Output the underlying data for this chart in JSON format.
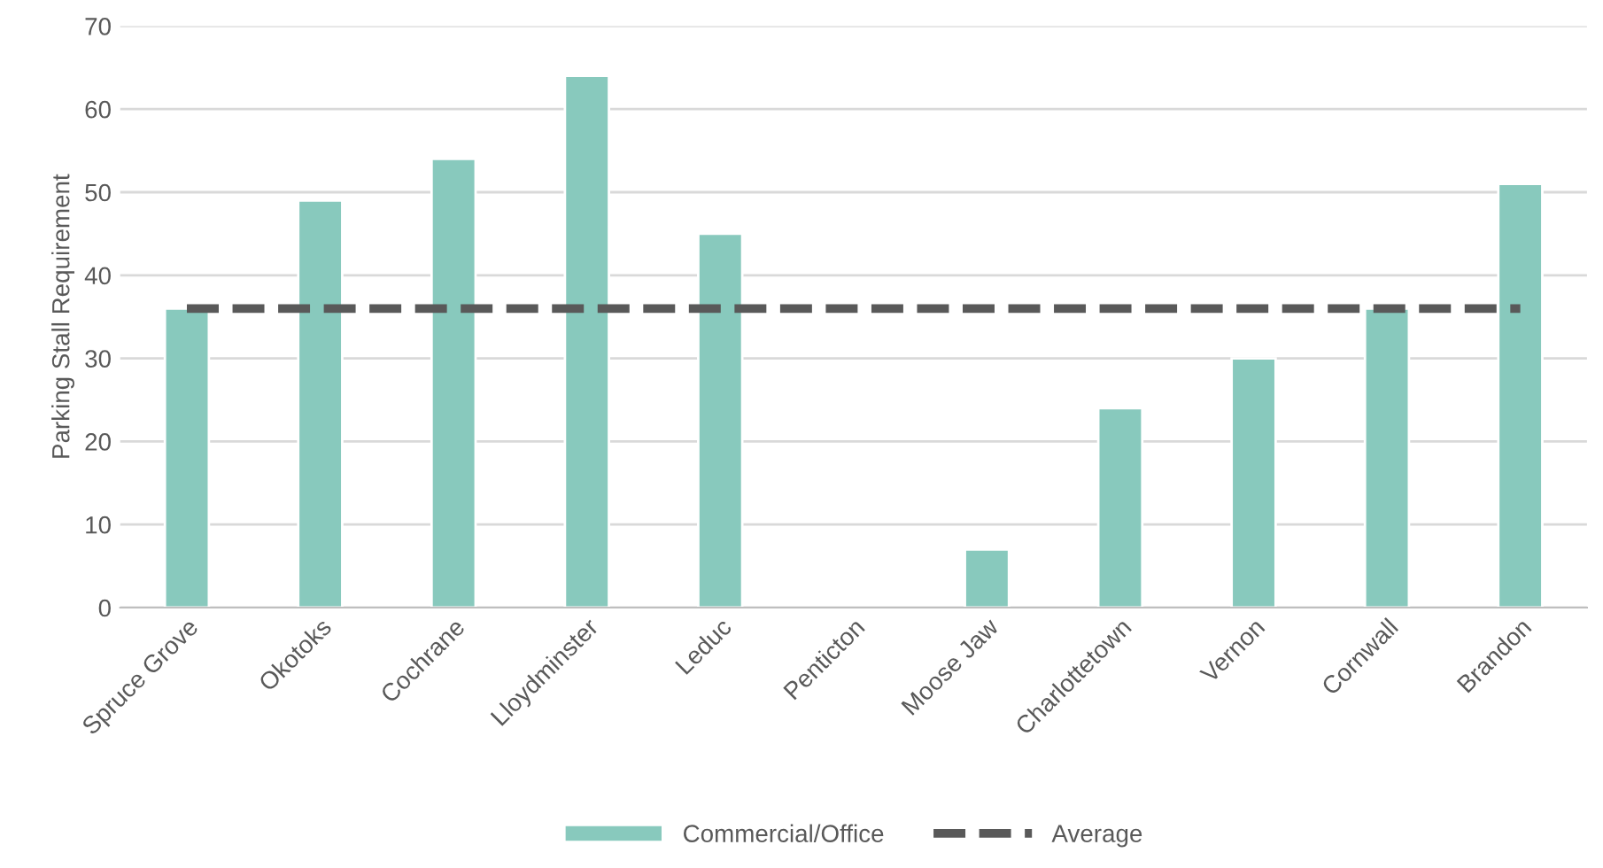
{
  "chart_data": {
    "type": "bar",
    "ylabel": "Parking Stall Requirement",
    "categories": [
      "Spruce Grove",
      "Okotoks",
      "Cochrane",
      "Lloydminster",
      "Leduc",
      "Penticton",
      "Moose Jaw",
      "Charlottetown",
      "Vernon",
      "Cornwall",
      "Brandon"
    ],
    "series": [
      {
        "name": "Commercial/Office",
        "color": "#88c9bd",
        "values": [
          36,
          49,
          54,
          64,
          45,
          null,
          7,
          24,
          30,
          36,
          51
        ]
      },
      {
        "name": "Average",
        "type": "line",
        "line_style": "dashed",
        "color": "#595959",
        "values": [
          36,
          36,
          36,
          36,
          36,
          36,
          36,
          36,
          36,
          36,
          36
        ]
      }
    ],
    "ylim": [
      0,
      70
    ],
    "yticks": [
      0,
      10,
      20,
      30,
      40,
      50,
      60,
      70
    ],
    "grid": "y",
    "legend": "bottom"
  }
}
